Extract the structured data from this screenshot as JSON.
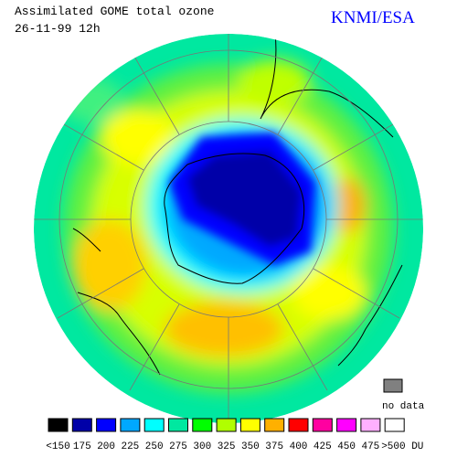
{
  "header": {
    "title": "Assimilated GOME total ozone",
    "date": "26-11-99 12h",
    "source": "KNMI/ESA"
  },
  "legend": {
    "no_data": {
      "label": "no data",
      "color": "#808080"
    },
    "items": [
      {
        "label": "<150",
        "color": "#000000"
      },
      {
        "label": "175",
        "color": "#0000a8"
      },
      {
        "label": "200",
        "color": "#0000ff"
      },
      {
        "label": "225",
        "color": "#00a8ff"
      },
      {
        "label": "250",
        "color": "#00ffff"
      },
      {
        "label": "275",
        "color": "#00e8a0"
      },
      {
        "label": "300",
        "color": "#00ff00"
      },
      {
        "label": "325",
        "color": "#b0ff00"
      },
      {
        "label": "350",
        "color": "#ffff00"
      },
      {
        "label": "375",
        "color": "#ffb000"
      },
      {
        "label": "400",
        "color": "#ff0000"
      },
      {
        "label": "425",
        "color": "#ff00a0"
      },
      {
        "label": "450",
        "color": "#ff00ff"
      },
      {
        "label": "475",
        "color": "#ffb0ff"
      },
      {
        "label": ">500 DU",
        "color": "#ffffff"
      }
    ]
  }
}
